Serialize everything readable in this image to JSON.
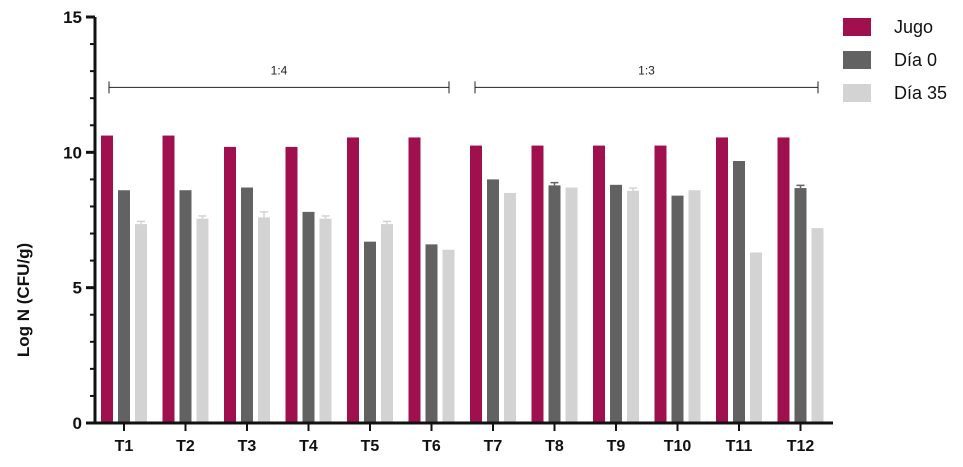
{
  "chart_data": {
    "type": "bar",
    "categories": [
      "T1",
      "T2",
      "T3",
      "T4",
      "T5",
      "T6",
      "T7",
      "T8",
      "T9",
      "T10",
      "T11",
      "T12"
    ],
    "series": [
      {
        "name": "Jugo",
        "color": "#a0104f",
        "values": [
          10.62,
          10.62,
          10.2,
          10.2,
          10.55,
          10.55,
          10.25,
          10.25,
          10.25,
          10.25,
          10.55,
          10.55
        ],
        "errors": [
          0,
          0,
          0,
          0,
          0,
          0,
          0,
          0,
          0,
          0,
          0,
          0
        ]
      },
      {
        "name": "Día 0",
        "color": "#626262",
        "values": [
          8.6,
          8.6,
          8.7,
          7.8,
          6.7,
          6.6,
          9.0,
          8.78,
          8.8,
          8.4,
          9.68,
          8.68
        ],
        "errors": [
          0,
          0,
          0,
          0,
          0,
          0,
          0,
          0.1,
          0,
          0,
          0,
          0.1
        ]
      },
      {
        "name": "Día 35",
        "color": "#d3d3d3",
        "values": [
          7.35,
          7.55,
          7.6,
          7.55,
          7.35,
          6.4,
          8.5,
          8.7,
          8.58,
          8.6,
          6.3,
          7.2
        ],
        "errors": [
          0.1,
          0.1,
          0.2,
          0.1,
          0.1,
          0,
          0,
          0,
          0.1,
          0,
          0,
          0
        ]
      }
    ],
    "title": "",
    "xlabel": "",
    "ylabel": "Log N (CFU/g)",
    "ylim": [
      0,
      15
    ],
    "yticks": [
      "0",
      "5",
      "10",
      "15"
    ],
    "grid": false,
    "legend_position": "top-right",
    "group_annotations": [
      {
        "label": "1:4",
        "from": "T1",
        "to": "T6",
        "y": 12.4
      },
      {
        "label": "1:3",
        "from": "T7",
        "to": "T12",
        "y": 12.4
      }
    ]
  }
}
